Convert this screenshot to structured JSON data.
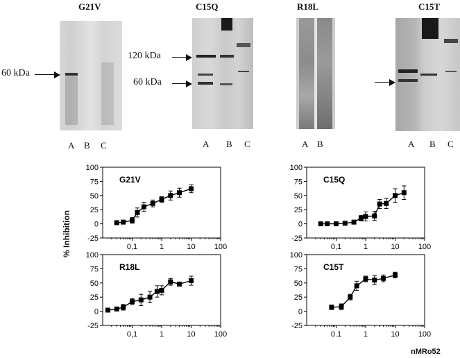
{
  "blots": [
    {
      "title": "G21V",
      "lanes": [
        "A",
        "B",
        "C"
      ],
      "markers": [
        "60 kDa"
      ]
    },
    {
      "title": "C15Q",
      "lanes": [
        "A",
        "B",
        "C"
      ],
      "markers": [
        "120 kDa",
        "60 kDa"
      ]
    },
    {
      "title": "R18L",
      "lanes": [
        "A",
        "B"
      ],
      "markers": []
    },
    {
      "title": "C15T",
      "lanes": [
        "A",
        "B",
        "C"
      ],
      "markers": []
    }
  ],
  "y_axis_label": "% Inhibition",
  "x_axis_unit": "nMRo52",
  "chart_data": [
    {
      "type": "line",
      "title": "G21V",
      "xscale": "log",
      "xlim": [
        0.01,
        100
      ],
      "ylim": [
        -25,
        100
      ],
      "xticks": [
        "0.1",
        "1",
        "10",
        "100"
      ],
      "yticks": [
        "-25",
        "0",
        "25",
        "50",
        "75",
        "100"
      ],
      "series": [
        {
          "x": [
            0.03,
            0.05,
            0.1,
            0.15,
            0.25,
            0.5,
            1,
            2,
            4,
            10
          ],
          "y": [
            2,
            3,
            6,
            20,
            30,
            36,
            43,
            50,
            55,
            62
          ],
          "err": [
            0,
            2,
            5,
            8,
            8,
            6,
            5,
            8,
            8,
            7
          ]
        }
      ]
    },
    {
      "type": "line",
      "title": "C15Q",
      "xscale": "log",
      "xlim": [
        0.01,
        100
      ],
      "ylim": [
        -25,
        100
      ],
      "xticks": [
        "0,1",
        "1",
        "10",
        "100"
      ],
      "yticks": [
        "-25",
        "0",
        "25",
        "50",
        "75",
        "100"
      ],
      "series": [
        {
          "x": [
            0.03,
            0.05,
            0.1,
            0.2,
            0.4,
            0.7,
            1,
            2,
            3,
            5,
            10,
            20
          ],
          "y": [
            0,
            0,
            0,
            1,
            3,
            10,
            13,
            14,
            35,
            36,
            50,
            55
          ],
          "err": [
            0,
            0,
            0,
            0,
            2,
            5,
            8,
            8,
            8,
            9,
            12,
            12
          ]
        }
      ]
    },
    {
      "type": "line",
      "title": "R18L",
      "xscale": "log",
      "xlim": [
        0.01,
        100
      ],
      "ylim": [
        -25,
        100
      ],
      "xticks": [
        "0,1",
        "1",
        "10",
        "100"
      ],
      "yticks": [
        "-25",
        "0",
        "25",
        "50",
        "75",
        "100"
      ],
      "series": [
        {
          "x": [
            0.015,
            0.03,
            0.05,
            0.1,
            0.2,
            0.4,
            0.7,
            1,
            2,
            4,
            10
          ],
          "y": [
            2,
            4,
            7,
            17,
            20,
            25,
            35,
            37,
            52,
            48,
            54
          ],
          "err": [
            0,
            3,
            5,
            5,
            10,
            10,
            10,
            8,
            6,
            3,
            8
          ]
        }
      ]
    },
    {
      "type": "line",
      "title": "C15T",
      "xscale": "log",
      "xlim": [
        0.01,
        100
      ],
      "ylim": [
        -25,
        100
      ],
      "xticks": [
        "0.1",
        "1",
        "10",
        "100"
      ],
      "yticks": [
        "-25",
        "0",
        "25",
        "50",
        "75",
        "100"
      ],
      "series": [
        {
          "x": [
            0.07,
            0.15,
            0.3,
            0.5,
            1,
            2,
            4,
            10
          ],
          "y": [
            7,
            8,
            25,
            45,
            57,
            55,
            58,
            64
          ],
          "err": [
            4,
            5,
            5,
            8,
            5,
            8,
            6,
            5
          ]
        }
      ]
    }
  ]
}
